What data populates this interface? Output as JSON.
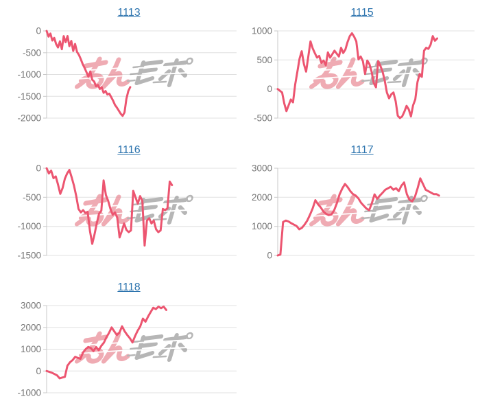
{
  "style": {
    "background": "#ffffff",
    "line_color": "#ec5570",
    "grid_color": "#e0e0e0",
    "axis_color": "#c9c9c9",
    "tick_label_color": "#757575",
    "title_link_color": "#2a72ad",
    "watermark_pink": "#e98b96",
    "watermark_gray": "#9b9b9b"
  },
  "watermark": {
    "name": "minrepo-logo",
    "text": "みんレポ"
  },
  "chart_data": [
    {
      "type": "line",
      "title": "1113",
      "xlabel": "",
      "ylabel": "",
      "grid": true,
      "ylim": [
        -2000,
        0
      ],
      "yticks": [
        0,
        -500,
        -1000,
        -1500,
        -2000
      ],
      "end_fraction": 0.44,
      "values": [
        0,
        -130,
        -60,
        -220,
        -160,
        -300,
        -380,
        -240,
        -420,
        -120,
        -260,
        -120,
        -350,
        -230,
        -460,
        -300,
        -480,
        -550,
        -650,
        -760,
        -850,
        -950,
        -1050,
        -930,
        -1120,
        -1160,
        -1270,
        -1240,
        -1330,
        -1290,
        -1420,
        -1380,
        -1460,
        -1440,
        -1520,
        -1600,
        -1700,
        -1760,
        -1830,
        -1900,
        -1950,
        -1870,
        -1560,
        -1380,
        -1290
      ]
    },
    {
      "type": "line",
      "title": "1115",
      "xlabel": "",
      "ylabel": "",
      "grid": true,
      "ylim": [
        -500,
        1000
      ],
      "yticks": [
        1000,
        500,
        0,
        -500
      ],
      "end_fraction": 0.81,
      "values": [
        0,
        -30,
        -60,
        -250,
        -380,
        -280,
        -180,
        -230,
        80,
        300,
        520,
        650,
        430,
        300,
        560,
        820,
        700,
        620,
        540,
        570,
        450,
        490,
        410,
        630,
        540,
        600,
        660,
        610,
        560,
        710,
        620,
        680,
        810,
        910,
        960,
        900,
        820,
        510,
        560,
        480,
        260,
        490,
        430,
        300,
        100,
        30,
        480,
        400,
        300,
        150,
        -60,
        -160,
        -90,
        -60,
        -210,
        -460,
        -500,
        -470,
        -390,
        -290,
        -350,
        -470,
        -280,
        -180,
        120,
        260,
        210,
        660,
        710,
        690,
        760,
        910,
        830,
        870
      ]
    },
    {
      "type": "line",
      "title": "1116",
      "xlabel": "",
      "ylabel": "",
      "grid": true,
      "ylim": [
        -1500,
        0
      ],
      "yticks": [
        0,
        -500,
        -1000,
        -1500
      ],
      "end_fraction": 0.66,
      "values": [
        0,
        -90,
        -40,
        -170,
        -140,
        -280,
        -440,
        -340,
        -180,
        -90,
        -30,
        -160,
        -300,
        -480,
        -700,
        -760,
        -720,
        -770,
        -750,
        -1080,
        -1300,
        -1140,
        -950,
        -780,
        -730,
        -210,
        -460,
        -560,
        -700,
        -800,
        -760,
        -850,
        -1190,
        -1080,
        -950,
        -1060,
        -1100,
        -1070,
        -390,
        -500,
        -610,
        -480,
        -560,
        -1330,
        -900,
        -860,
        -950,
        -900,
        -1050,
        -1100,
        -1070,
        -700,
        -720,
        -690,
        -230,
        -290
      ]
    },
    {
      "type": "line",
      "title": "1117",
      "xlabel": "",
      "ylabel": "",
      "grid": true,
      "ylim": [
        0,
        3000
      ],
      "yticks": [
        3000,
        2000,
        1000,
        0
      ],
      "end_fraction": 0.82,
      "values": [
        0,
        30,
        1150,
        1200,
        1170,
        1110,
        1060,
        1010,
        900,
        950,
        1060,
        1200,
        1400,
        1620,
        1900,
        1760,
        1650,
        1510,
        1430,
        1390,
        1410,
        1560,
        1800,
        2100,
        2300,
        2460,
        2350,
        2210,
        2110,
        2060,
        1960,
        1810,
        1710,
        1610,
        1560,
        1800,
        2100,
        1950,
        2060,
        2160,
        2260,
        2310,
        2360,
        2260,
        2310,
        2210,
        2400,
        2510,
        2110,
        1910,
        1860,
        2010,
        2310,
        2650,
        2460,
        2260,
        2210,
        2160,
        2110,
        2110,
        2060
      ]
    },
    {
      "type": "line",
      "title": "1118",
      "xlabel": "",
      "ylabel": "",
      "grid": true,
      "ylim": [
        -1000,
        3000
      ],
      "yticks": [
        3000,
        2000,
        1000,
        0,
        -1000
      ],
      "end_fraction": 0.63,
      "values": [
        0,
        -40,
        -80,
        -140,
        -200,
        -340,
        -300,
        -270,
        240,
        400,
        500,
        650,
        600,
        560,
        850,
        1000,
        1100,
        1050,
        910,
        1100,
        950,
        1150,
        1300,
        1550,
        1750,
        2000,
        1820,
        1650,
        1760,
        2050,
        1820,
        1650,
        1500,
        1310,
        1600,
        1850,
        2050,
        2400,
        2260,
        2500,
        2700,
        2900,
        2840,
        2950,
        2880,
        2950,
        2800
      ]
    }
  ]
}
